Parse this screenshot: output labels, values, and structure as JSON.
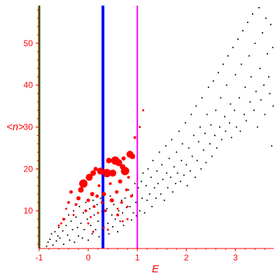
{
  "chart_data": {
    "type": "scatter",
    "xlabel": "E",
    "ylabel": "<n>",
    "xlim": [
      -1,
      3.78
    ],
    "ylim": [
      1,
      59
    ],
    "x_ticks": [
      -1,
      0,
      1,
      2,
      3
    ],
    "y_ticks": [
      10,
      20,
      30,
      40,
      50
    ],
    "colors": {
      "axis": "#ff0000",
      "black_points": "#000000",
      "red_points": "#ff0000",
      "line_dark_green": "#006400",
      "line_blue": "#0000ff",
      "line_magenta": "#ff00ff"
    },
    "vertical_lines": [
      {
        "x": -1.0,
        "color": "#006400"
      },
      {
        "x": 0.3,
        "color": "#0000ff"
      },
      {
        "x": 1.0,
        "color": "#ff00ff"
      }
    ],
    "series": [
      {
        "color": "#000000",
        "points": [
          [
            -0.85,
            1.5
          ],
          [
            -0.82,
            2.5
          ],
          [
            -0.78,
            3.2
          ],
          [
            -0.75,
            4.5
          ],
          [
            -0.72,
            1.8
          ],
          [
            -0.68,
            5.0
          ],
          [
            -0.65,
            2.8
          ],
          [
            -0.62,
            4.0
          ],
          [
            -0.6,
            6.0
          ],
          [
            -0.58,
            3.5
          ],
          [
            -0.55,
            7.0
          ],
          [
            -0.52,
            5.2
          ],
          [
            -0.5,
            2.0
          ],
          [
            -0.48,
            8.0
          ],
          [
            -0.45,
            6.5
          ],
          [
            -0.42,
            4.2
          ],
          [
            -0.4,
            9.0
          ],
          [
            -0.38,
            3.0
          ],
          [
            -0.35,
            7.5
          ],
          [
            -0.32,
            5.5
          ],
          [
            -0.3,
            10.0
          ],
          [
            -0.28,
            2.5
          ],
          [
            -0.25,
            8.5
          ],
          [
            -0.22,
            6.0
          ],
          [
            -0.2,
            4.0
          ],
          [
            -0.18,
            11.0
          ],
          [
            -0.15,
            7.0
          ],
          [
            -0.12,
            3.5
          ],
          [
            -0.1,
            9.5
          ],
          [
            -0.08,
            5.5
          ],
          [
            -0.05,
            12.0
          ],
          [
            -0.02,
            8.0
          ],
          [
            0.0,
            3.0
          ],
          [
            0.03,
            10.5
          ],
          [
            0.05,
            6.5
          ],
          [
            0.08,
            4.5
          ],
          [
            0.1,
            12.5
          ],
          [
            0.12,
            9.0
          ],
          [
            0.15,
            5.5
          ],
          [
            0.18,
            11.5
          ],
          [
            0.2,
            7.5
          ],
          [
            0.22,
            3.8
          ],
          [
            0.25,
            13.0
          ],
          [
            0.28,
            9.8
          ],
          [
            0.32,
            6.0
          ],
          [
            0.35,
            14.0
          ],
          [
            0.38,
            10.5
          ],
          [
            0.4,
            7.0
          ],
          [
            0.42,
            4.5
          ],
          [
            0.45,
            13.5
          ],
          [
            0.48,
            9.0
          ],
          [
            0.5,
            6.2
          ],
          [
            0.52,
            11.5
          ],
          [
            0.55,
            8.0
          ],
          [
            0.58,
            14.5
          ],
          [
            0.6,
            5.0
          ],
          [
            0.62,
            10.0
          ],
          [
            0.65,
            7.5
          ],
          [
            0.68,
            12.5
          ],
          [
            0.7,
            9.5
          ],
          [
            0.72,
            6.5
          ],
          [
            0.75,
            13.0
          ],
          [
            0.78,
            10.8
          ],
          [
            0.8,
            8.0
          ],
          [
            0.82,
            15.0
          ],
          [
            0.85,
            11.0
          ],
          [
            0.88,
            7.8
          ],
          [
            0.9,
            13.8
          ],
          [
            0.92,
            9.5
          ],
          [
            0.95,
            16.5
          ],
          [
            0.97,
            12.0
          ],
          [
            0.98,
            8.8
          ],
          [
            1.02,
            15.5
          ],
          [
            1.05,
            10.0
          ],
          [
            1.08,
            17.0
          ],
          [
            1.1,
            13.0
          ],
          [
            1.12,
            19.0
          ],
          [
            1.15,
            9.5
          ],
          [
            1.18,
            16.0
          ],
          [
            1.2,
            12.5
          ],
          [
            1.22,
            20.0
          ],
          [
            1.25,
            14.0
          ],
          [
            1.28,
            18.0
          ],
          [
            1.3,
            11.0
          ],
          [
            1.32,
            22.0
          ],
          [
            1.35,
            15.5
          ],
          [
            1.38,
            13.0
          ],
          [
            1.4,
            19.5
          ],
          [
            1.42,
            16.5
          ],
          [
            1.45,
            24.0
          ],
          [
            1.48,
            14.0
          ],
          [
            1.5,
            21.0
          ],
          [
            1.52,
            17.5
          ],
          [
            1.55,
            12.5
          ],
          [
            1.58,
            25.5
          ],
          [
            1.6,
            19.0
          ],
          [
            1.62,
            15.5
          ],
          [
            1.65,
            22.5
          ],
          [
            1.68,
            18.0
          ],
          [
            1.7,
            27.0
          ],
          [
            1.72,
            14.5
          ],
          [
            1.75,
            20.5
          ],
          [
            1.78,
            16.5
          ],
          [
            1.8,
            24.0
          ],
          [
            1.82,
            19.0
          ],
          [
            1.85,
            29.0
          ],
          [
            1.88,
            17.0
          ],
          [
            1.9,
            22.0
          ],
          [
            1.92,
            26.0
          ],
          [
            1.95,
            18.5
          ],
          [
            1.98,
            31.0
          ],
          [
            2.0,
            21.0
          ],
          [
            2.02,
            16.0
          ],
          [
            2.05,
            25.0
          ],
          [
            2.08,
            19.5
          ],
          [
            2.1,
            33.0
          ],
          [
            2.12,
            23.0
          ],
          [
            2.15,
            28.0
          ],
          [
            2.18,
            18.0
          ],
          [
            2.2,
            35.0
          ],
          [
            2.22,
            22.0
          ],
          [
            2.25,
            26.5
          ],
          [
            2.28,
            30.0
          ],
          [
            2.3,
            20.0
          ],
          [
            2.32,
            37.0
          ],
          [
            2.35,
            24.5
          ],
          [
            2.38,
            28.5
          ],
          [
            2.4,
            21.5
          ],
          [
            2.42,
            33.0
          ],
          [
            2.45,
            39.5
          ],
          [
            2.48,
            26.0
          ],
          [
            2.5,
            30.5
          ],
          [
            2.52,
            23.0
          ],
          [
            2.55,
            41.0
          ],
          [
            2.58,
            28.0
          ],
          [
            2.6,
            34.0
          ],
          [
            2.62,
            25.0
          ],
          [
            2.65,
            43.0
          ],
          [
            2.68,
            30.0
          ],
          [
            2.7,
            37.0
          ],
          [
            2.72,
            27.0
          ],
          [
            2.75,
            45.0
          ],
          [
            2.78,
            32.5
          ],
          [
            2.8,
            29.0
          ],
          [
            2.82,
            40.0
          ],
          [
            2.85,
            47.0
          ],
          [
            2.88,
            31.0
          ],
          [
            2.9,
            35.5
          ],
          [
            2.92,
            27.5
          ],
          [
            2.95,
            49.0
          ],
          [
            2.98,
            34.0
          ],
          [
            3.0,
            42.5
          ],
          [
            3.02,
            30.0
          ],
          [
            3.05,
            51.0
          ],
          [
            3.08,
            37.0
          ],
          [
            3.1,
            29.0
          ],
          [
            3.12,
            45.0
          ],
          [
            3.15,
            53.0
          ],
          [
            3.18,
            33.0
          ],
          [
            3.2,
            39.5
          ],
          [
            3.22,
            31.5
          ],
          [
            3.25,
            55.0
          ],
          [
            3.28,
            47.0
          ],
          [
            3.3,
            36.0
          ],
          [
            3.32,
            42.0
          ],
          [
            3.35,
            57.0
          ],
          [
            3.38,
            34.0
          ],
          [
            3.4,
            50.0
          ],
          [
            3.42,
            38.5
          ],
          [
            3.45,
            30.0
          ],
          [
            3.48,
            58.5
          ],
          [
            3.5,
            44.0
          ],
          [
            3.52,
            36.5
          ],
          [
            3.55,
            52.5
          ],
          [
            3.58,
            40.0
          ],
          [
            3.6,
            33.0
          ],
          [
            3.62,
            56.0
          ],
          [
            3.65,
            47.5
          ],
          [
            3.68,
            42.0
          ],
          [
            3.7,
            38.0
          ],
          [
            3.72,
            54.5
          ],
          [
            3.74,
            25.5
          ],
          [
            3.76,
            49.0
          ],
          [
            3.77,
            35.0
          ]
        ]
      },
      {
        "color": "#ff0000",
        "points": [
          [
            -0.45,
            10.5,
            1.5
          ],
          [
            -0.4,
            12.0,
            2
          ],
          [
            -0.35,
            14.5,
            2.5
          ],
          [
            -0.3,
            9.0,
            1.5
          ],
          [
            -0.25,
            11.5,
            2
          ],
          [
            -0.2,
            13.0,
            3
          ],
          [
            -0.15,
            15.0,
            4
          ],
          [
            -0.1,
            16.5,
            6
          ],
          [
            -0.05,
            10.0,
            2
          ],
          [
            0.0,
            12.5,
            2.5
          ],
          [
            0.02,
            18.0,
            5
          ],
          [
            0.05,
            8.5,
            1.5
          ],
          [
            0.08,
            14.0,
            3
          ],
          [
            0.1,
            19.0,
            4
          ],
          [
            0.12,
            11.0,
            2
          ],
          [
            0.15,
            20.0,
            3
          ],
          [
            0.18,
            13.5,
            2.5
          ],
          [
            0.2,
            9.5,
            1.5
          ],
          [
            0.22,
            16.0,
            2
          ],
          [
            0.25,
            19.5,
            5
          ],
          [
            0.28,
            12.0,
            2
          ],
          [
            0.32,
            14.0,
            3
          ],
          [
            0.35,
            10.0,
            2
          ],
          [
            0.38,
            19.0,
            6
          ],
          [
            0.42,
            22.0,
            4
          ],
          [
            0.45,
            16.5,
            2
          ],
          [
            0.48,
            12.5,
            3
          ],
          [
            0.5,
            19.0,
            5
          ],
          [
            0.55,
            22.0,
            6
          ],
          [
            0.58,
            14.5,
            2.5
          ],
          [
            0.6,
            10.5,
            1.5
          ],
          [
            0.62,
            21.5,
            5
          ],
          [
            0.65,
            17.0,
            3
          ],
          [
            0.68,
            12.0,
            2
          ],
          [
            0.7,
            20.5,
            4
          ],
          [
            0.72,
            22.5,
            3
          ],
          [
            0.75,
            19.5,
            6
          ],
          [
            0.78,
            15.0,
            2
          ],
          [
            0.8,
            11.0,
            1.5
          ],
          [
            0.82,
            18.0,
            2
          ],
          [
            0.85,
            23.5,
            5
          ],
          [
            0.88,
            13.5,
            2
          ],
          [
            0.9,
            23.0,
            4
          ],
          [
            0.95,
            27.5,
            2
          ],
          [
            1.05,
            30.0,
            1.5
          ],
          [
            1.12,
            34.0,
            1.5
          ],
          [
            -0.6,
            6.5,
            1.5
          ],
          [
            -0.5,
            8.0,
            2
          ],
          [
            -0.55,
            7.0,
            1.5
          ],
          [
            0.0,
            7.0,
            1.5
          ],
          [
            0.1,
            5.0,
            1.5
          ],
          [
            0.3,
            6.0,
            1.5
          ],
          [
            0.4,
            5.5,
            1.5
          ],
          [
            0.6,
            9.0,
            2
          ],
          [
            0.7,
            7.5,
            1.5
          ],
          [
            0.8,
            8.0,
            1.5
          ]
        ]
      }
    ]
  }
}
